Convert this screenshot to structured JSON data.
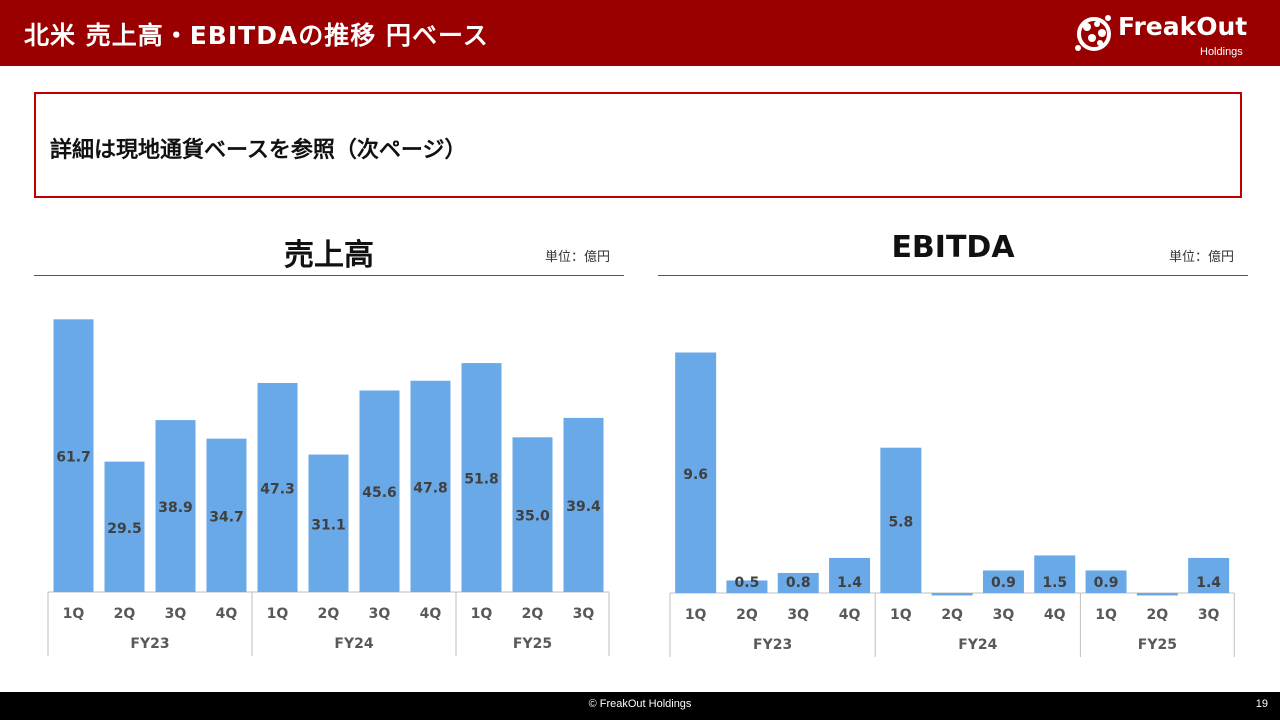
{
  "header": {
    "title": "北米 売上高・EBITDAの推移 円ベース",
    "logo_text": "FreakOut",
    "logo_sub": "Holdings"
  },
  "notice": {
    "text": "詳細は現地通貨ベースを参照（次ページ）"
  },
  "colors": {
    "header_bg": "#9b0000",
    "bar": "#6aa9e8",
    "notice_border": "#c00000"
  },
  "footer": {
    "copyright": "© FreakOut Holdings",
    "page": "19"
  },
  "chart_data": [
    {
      "type": "bar",
      "title": "売上高",
      "unit": "単位：億円",
      "categories": [
        "1Q",
        "2Q",
        "3Q",
        "4Q",
        "1Q",
        "2Q",
        "3Q",
        "4Q",
        "1Q",
        "2Q",
        "3Q"
      ],
      "groups": [
        {
          "label": "FY23",
          "count": 4
        },
        {
          "label": "FY24",
          "count": 4
        },
        {
          "label": "FY25",
          "count": 3
        }
      ],
      "values": [
        61.7,
        29.5,
        38.9,
        34.7,
        47.3,
        31.1,
        45.6,
        47.8,
        51.8,
        35.0,
        39.4
      ],
      "labels": [
        "61.7",
        "29.5",
        "38.9",
        "34.7",
        "47.3",
        "31.1",
        "45.6",
        "47.8",
        "51.8",
        "35.0",
        "39.4"
      ],
      "ylim": [
        0,
        62
      ]
    },
    {
      "type": "bar",
      "title": "EBITDA",
      "unit": "単位：億円",
      "categories": [
        "1Q",
        "2Q",
        "3Q",
        "4Q",
        "1Q",
        "2Q",
        "3Q",
        "4Q",
        "1Q",
        "2Q",
        "3Q"
      ],
      "groups": [
        {
          "label": "FY23",
          "count": 4
        },
        {
          "label": "FY24",
          "count": 4
        },
        {
          "label": "FY25",
          "count": 3
        }
      ],
      "values": [
        9.6,
        0.5,
        0.8,
        1.4,
        5.8,
        -0.1,
        0.9,
        1.5,
        0.9,
        -0.1,
        1.4
      ],
      "labels": [
        "9.6",
        "0.5",
        "0.8",
        "1.4",
        "5.8",
        "",
        "0.9",
        "1.5",
        "0.9",
        "",
        "1.4"
      ],
      "ylim": [
        -0.2,
        9.7
      ]
    }
  ]
}
